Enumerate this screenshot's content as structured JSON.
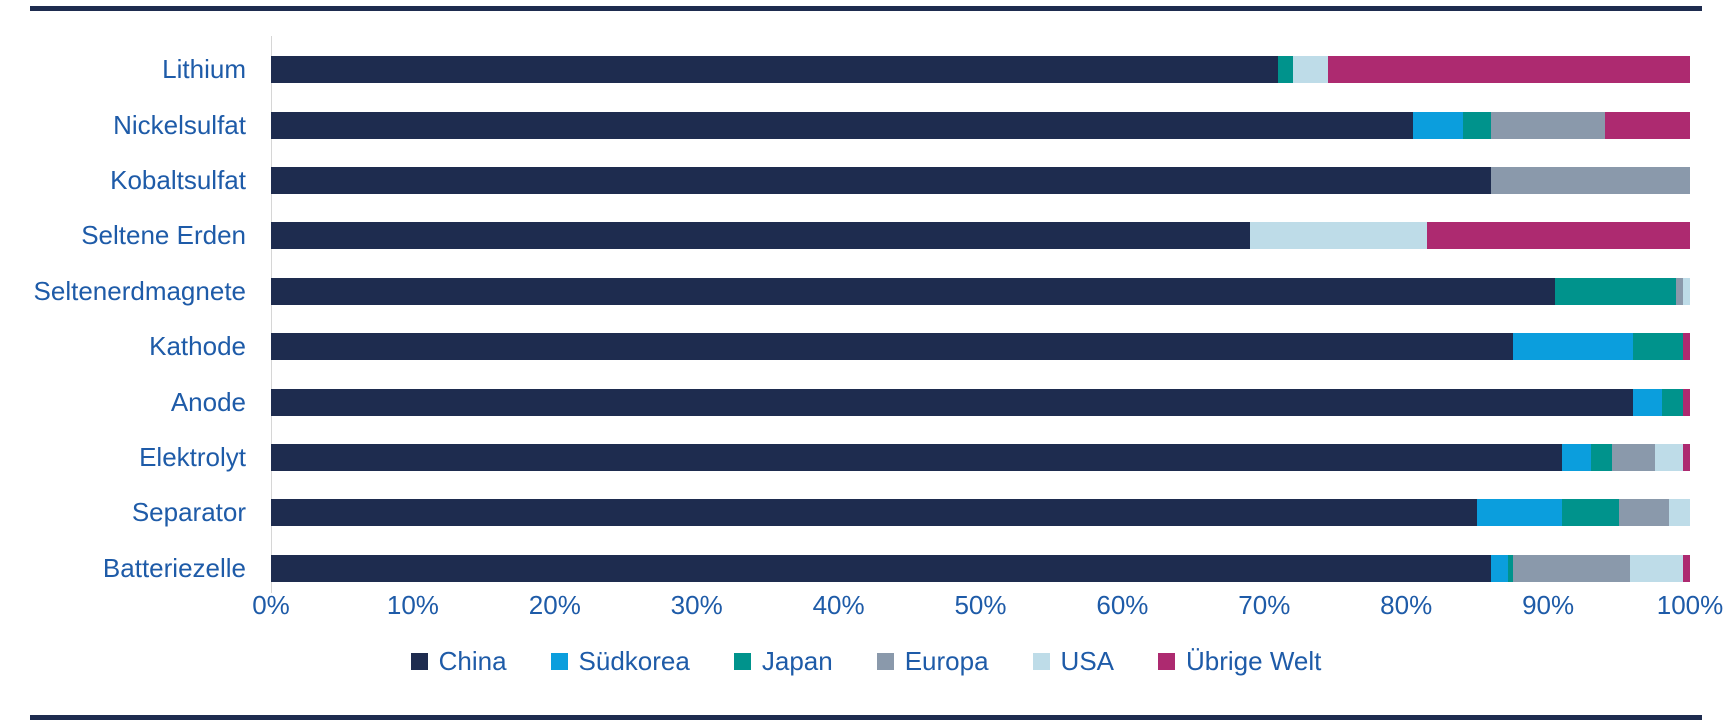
{
  "colors": {
    "rule": "#1e2c4f",
    "axis_line": "#d6d6d6",
    "label_text": "#1e5ba8"
  },
  "chart_data": {
    "type": "bar",
    "orientation": "horizontal",
    "stacked": true,
    "title": "",
    "xlabel": "",
    "ylabel": "",
    "xlim": [
      0,
      100
    ],
    "x_ticks": [
      "0%",
      "10%",
      "20%",
      "30%",
      "40%",
      "50%",
      "60%",
      "70%",
      "80%",
      "90%",
      "100%"
    ],
    "grid": false,
    "legend_position": "bottom",
    "categories": [
      "Lithium",
      "Nickelsulfat",
      "Kobaltsulfat",
      "Seltene Erden",
      "Seltenerdmagnete",
      "Kathode",
      "Anode",
      "Elektrolyt",
      "Separator",
      "Batteriezelle"
    ],
    "series": [
      {
        "name": "China",
        "color": "#1e2c4f",
        "values": [
          71,
          80.5,
          86,
          69,
          90.5,
          87.5,
          96,
          91,
          85,
          86
        ]
      },
      {
        "name": "Südkorea",
        "color": "#0b9edd",
        "values": [
          0,
          3.5,
          0,
          0,
          0,
          8.5,
          2,
          2,
          6,
          1.2
        ]
      },
      {
        "name": "Japan",
        "color": "#00938c",
        "values": [
          1,
          2,
          0,
          0,
          8.5,
          3.5,
          1.5,
          1.5,
          4,
          0.3
        ]
      },
      {
        "name": "Europa",
        "color": "#8a99ab",
        "values": [
          0,
          8,
          14,
          0,
          0.5,
          0,
          0,
          3,
          3.5,
          8.3
        ]
      },
      {
        "name": "USA",
        "color": "#bedce8",
        "values": [
          2.5,
          0,
          0,
          12.5,
          0.5,
          0,
          0,
          2,
          1.5,
          3.7
        ]
      },
      {
        "name": "Übrige Welt",
        "color": "#ad2a70",
        "values": [
          25.5,
          6,
          0,
          18.5,
          0,
          0.5,
          0.5,
          0.5,
          0,
          0.5
        ]
      }
    ]
  }
}
